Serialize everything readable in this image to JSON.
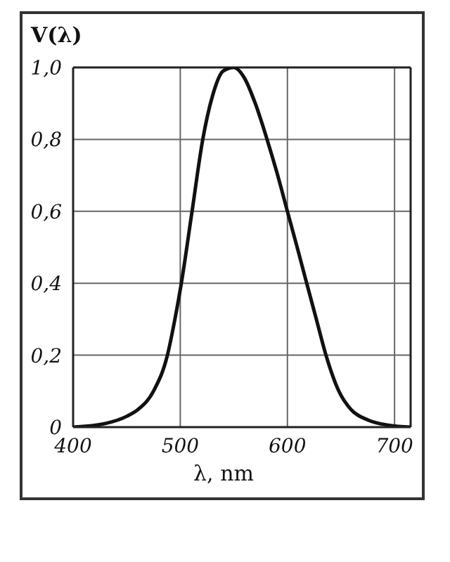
{
  "chart_data": {
    "type": "line",
    "xlabel": "λ, nm",
    "ylabel": "V(λ)",
    "x": [
      400,
      430,
      450,
      461,
      475,
      488,
      495,
      501,
      511,
      521,
      530,
      540,
      550,
      560,
      570,
      581,
      590,
      600,
      610,
      618,
      627,
      636,
      648,
      659,
      675,
      695,
      715
    ],
    "series": [
      {
        "color": "#111111",
        "values": [
          0,
          0.01,
          0.03,
          0.05,
          0.1,
          0.2,
          0.3,
          0.4,
          0.6,
          0.8,
          0.92,
          0.99,
          1.0,
          0.97,
          0.9,
          0.8,
          0.71,
          0.6,
          0.49,
          0.4,
          0.3,
          0.2,
          0.1,
          0.05,
          0.02,
          0.005,
          0
        ]
      }
    ],
    "xlim": [
      400,
      715
    ],
    "xticks": [
      400,
      500,
      600,
      700
    ],
    "ylim": [
      0,
      1
    ],
    "yticks": [
      0,
      {
        "value": 0.2,
        "label": "0,2"
      },
      {
        "value": 0.4,
        "label": "0,4"
      },
      {
        "value": 0.6,
        "label": "0,6"
      },
      {
        "value": 0.8,
        "label": "0,8"
      },
      {
        "value": 1,
        "label": "1,0"
      }
    ],
    "grid": true,
    "marker": "none",
    "line_style": "solid"
  }
}
